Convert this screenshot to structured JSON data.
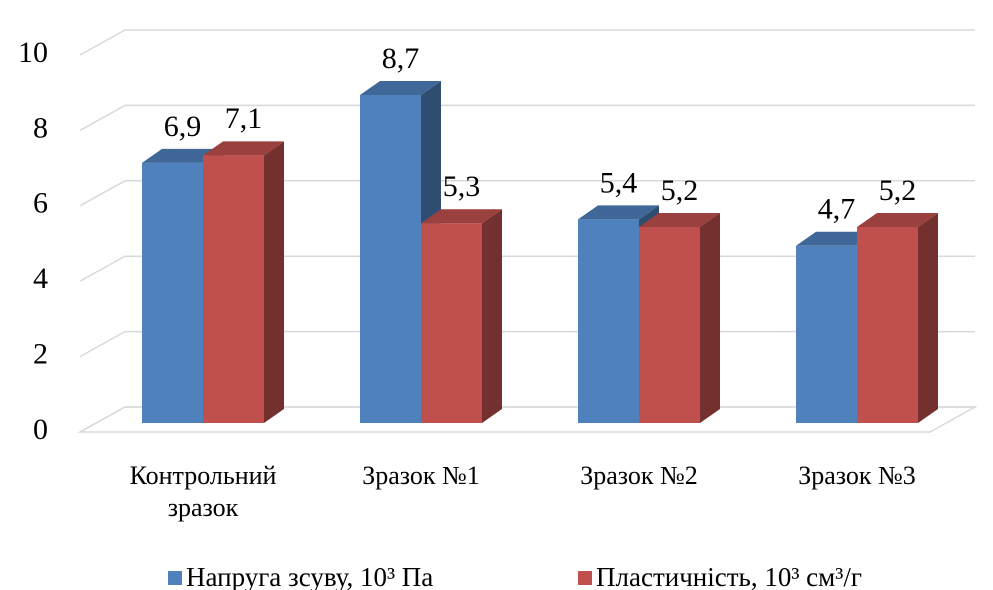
{
  "chart_data": {
    "type": "bar3d",
    "categories": [
      "Контрольний зразок",
      "Зразок №1",
      "Зразок №2",
      "Зразок №3"
    ],
    "series": [
      {
        "name": "Напруга зсуву, 10³ Па",
        "color": "#4f81bd",
        "values": [
          6.9,
          8.7,
          5.4,
          4.7
        ],
        "value_labels": [
          "6,9",
          "8,7",
          "5,4",
          "4,7"
        ]
      },
      {
        "name": "Пластичність, 10³ см³/г",
        "color": "#c0504d",
        "values": [
          7.1,
          5.3,
          5.2,
          5.2
        ],
        "value_labels": [
          "7,1",
          "5,3",
          "5,2",
          "5,2"
        ]
      }
    ],
    "ylim": [
      0,
      10
    ],
    "yticks": [
      0,
      2,
      4,
      6,
      8,
      10
    ],
    "grid": true,
    "legend": "bottom"
  }
}
